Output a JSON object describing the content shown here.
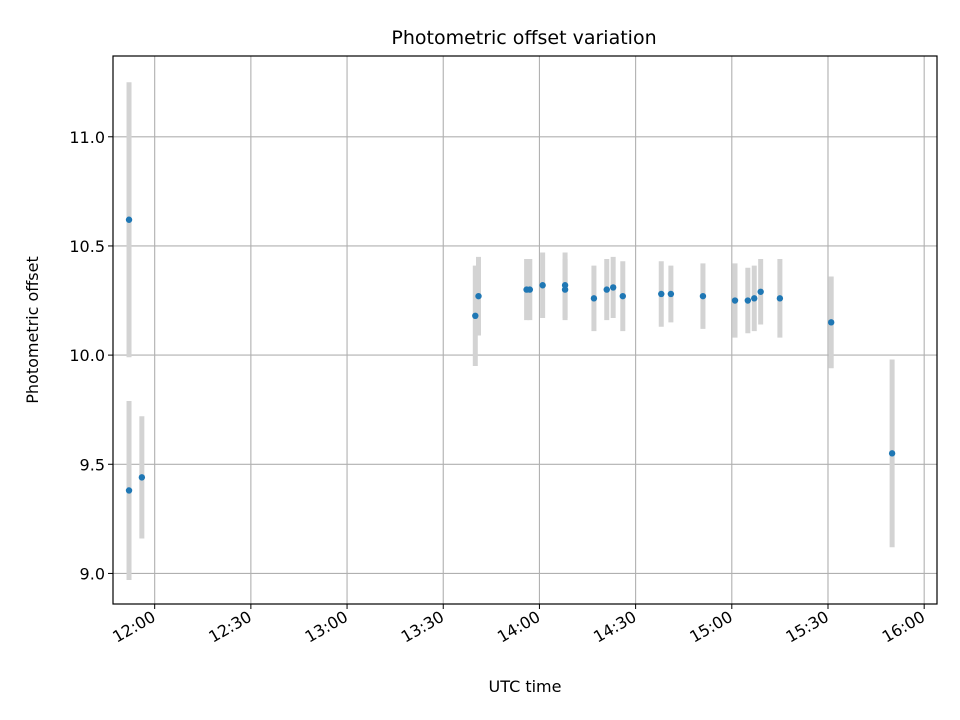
{
  "chart_data": {
    "type": "scatter",
    "title": "Photometric offset variation",
    "xlabel": "UTC time",
    "ylabel": "Photometric offset",
    "xlim": [
      "11:47",
      "16:04"
    ],
    "ylim": [
      8.86,
      11.37
    ],
    "x_ticks": [
      "12:00",
      "12:30",
      "13:00",
      "13:30",
      "14:00",
      "14:30",
      "15:00",
      "15:30",
      "16:00"
    ],
    "y_ticks": [
      "9.0",
      "9.5",
      "10.0",
      "10.5",
      "11.0"
    ],
    "grid": true,
    "colors": {
      "marker": "#1f77b4",
      "errorbar": "#d3d3d3"
    },
    "points": [
      {
        "x": "11:52",
        "y": 10.62,
        "err": 0.63
      },
      {
        "x": "11:52",
        "y": 9.38,
        "err": 0.41
      },
      {
        "x": "11:56",
        "y": 9.44,
        "err": 0.28
      },
      {
        "x": "13:40",
        "y": 10.18,
        "err": 0.23
      },
      {
        "x": "13:41",
        "y": 10.27,
        "err": 0.18
      },
      {
        "x": "13:56",
        "y": 10.3,
        "err": 0.14
      },
      {
        "x": "13:57",
        "y": 10.3,
        "err": 0.14
      },
      {
        "x": "14:01",
        "y": 10.32,
        "err": 0.15
      },
      {
        "x": "14:08",
        "y": 10.32,
        "err": 0.15
      },
      {
        "x": "14:08",
        "y": 10.3,
        "err": 0.14
      },
      {
        "x": "14:17",
        "y": 10.26,
        "err": 0.15
      },
      {
        "x": "14:21",
        "y": 10.3,
        "err": 0.14
      },
      {
        "x": "14:23",
        "y": 10.31,
        "err": 0.14
      },
      {
        "x": "14:26",
        "y": 10.27,
        "err": 0.16
      },
      {
        "x": "14:38",
        "y": 10.28,
        "err": 0.15
      },
      {
        "x": "14:41",
        "y": 10.28,
        "err": 0.13
      },
      {
        "x": "14:51",
        "y": 10.27,
        "err": 0.15
      },
      {
        "x": "15:01",
        "y": 10.25,
        "err": 0.17
      },
      {
        "x": "15:05",
        "y": 10.25,
        "err": 0.15
      },
      {
        "x": "15:07",
        "y": 10.26,
        "err": 0.15
      },
      {
        "x": "15:09",
        "y": 10.29,
        "err": 0.15
      },
      {
        "x": "15:15",
        "y": 10.26,
        "err": 0.18
      },
      {
        "x": "15:31",
        "y": 10.15,
        "err": 0.21
      },
      {
        "x": "15:50",
        "y": 9.55,
        "err": 0.43
      }
    ]
  }
}
